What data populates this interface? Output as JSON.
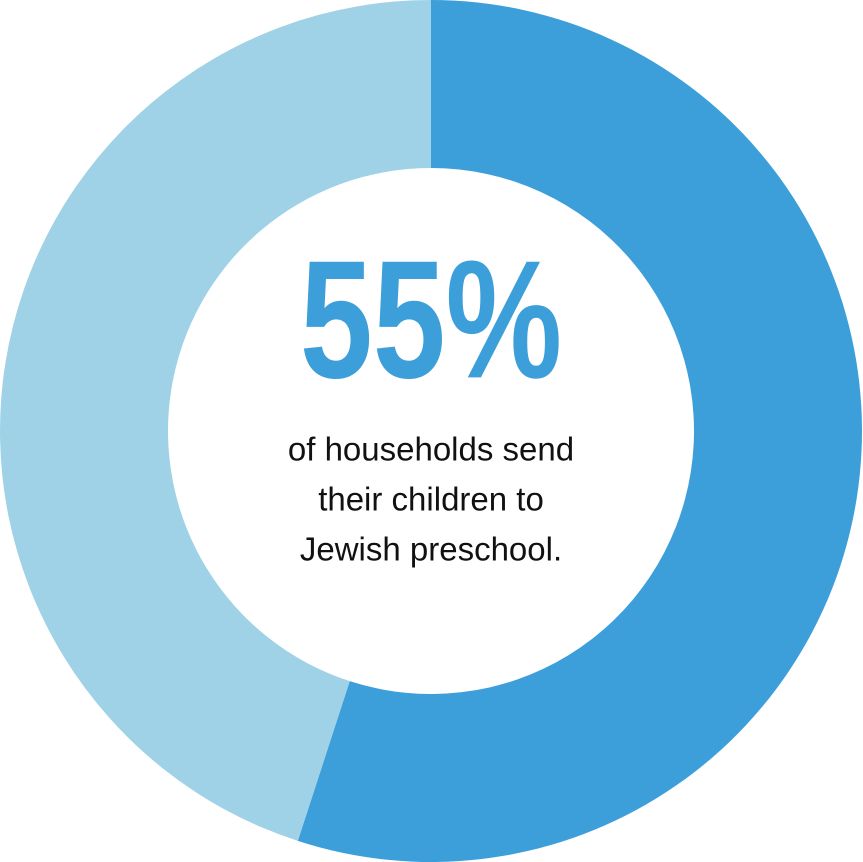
{
  "chart_data": {
    "type": "donut",
    "categories": [
      null,
      null
    ],
    "values": [
      55,
      45
    ],
    "value_labels": [
      "55%",
      null
    ],
    "colors": [
      "#3d9fd9",
      "#9fd2e6"
    ],
    "annotation": [
      "of households send",
      "their children to",
      "Jewish preschool."
    ]
  }
}
